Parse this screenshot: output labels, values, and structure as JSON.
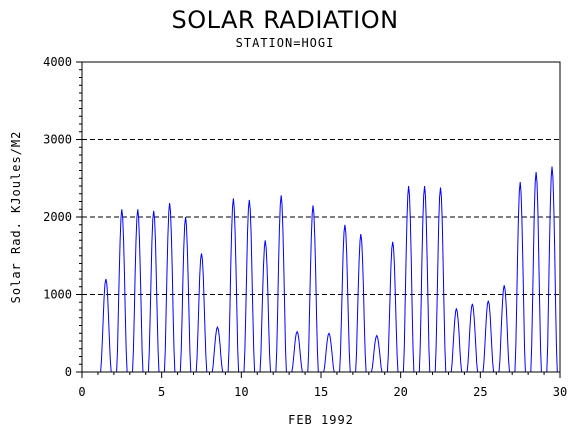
{
  "chart_data": {
    "type": "line",
    "title": "SOLAR RADIATION",
    "subtitle": "STATION=HOGI",
    "xlabel": "FEB 1992",
    "ylabel": "Solar Rad. KJoules/M2",
    "xlim": [
      0,
      30
    ],
    "ylim": [
      0,
      4000
    ],
    "xticks": [
      0,
      5,
      10,
      15,
      20,
      25,
      30
    ],
    "yticks": [
      0,
      1000,
      2000,
      3000,
      4000
    ],
    "grid": "horizontal-dashed",
    "series": [
      {
        "color": "#0000ff",
        "daily_peaks": [
          {
            "day": 1.5,
            "value": 1200
          },
          {
            "day": 2.5,
            "value": 2100
          },
          {
            "day": 3.5,
            "value": 2100
          },
          {
            "day": 4.5,
            "value": 2080
          },
          {
            "day": 5.5,
            "value": 2180
          },
          {
            "day": 6.5,
            "value": 2000
          },
          {
            "day": 7.5,
            "value": 1530
          },
          {
            "day": 8.5,
            "value": 580
          },
          {
            "day": 9.5,
            "value": 2240
          },
          {
            "day": 10.5,
            "value": 2220
          },
          {
            "day": 11.5,
            "value": 1700
          },
          {
            "day": 12.5,
            "value": 2280
          },
          {
            "day": 13.5,
            "value": 520
          },
          {
            "day": 14.5,
            "value": 2150
          },
          {
            "day": 15.5,
            "value": 500
          },
          {
            "day": 16.5,
            "value": 1900
          },
          {
            "day": 17.5,
            "value": 1780
          },
          {
            "day": 18.5,
            "value": 470
          },
          {
            "day": 19.5,
            "value": 1680
          },
          {
            "day": 20.5,
            "value": 2400
          },
          {
            "day": 21.5,
            "value": 2400
          },
          {
            "day": 22.5,
            "value": 2380
          },
          {
            "day": 23.5,
            "value": 820
          },
          {
            "day": 24.5,
            "value": 880
          },
          {
            "day": 25.5,
            "value": 920
          },
          {
            "day": 26.5,
            "value": 1120
          },
          {
            "day": 27.5,
            "value": 2450
          },
          {
            "day": 28.5,
            "value": 2580
          },
          {
            "day": 29.5,
            "value": 2650
          }
        ]
      },
      {
        "color": "#000000",
        "baseline_value": 0
      }
    ]
  }
}
